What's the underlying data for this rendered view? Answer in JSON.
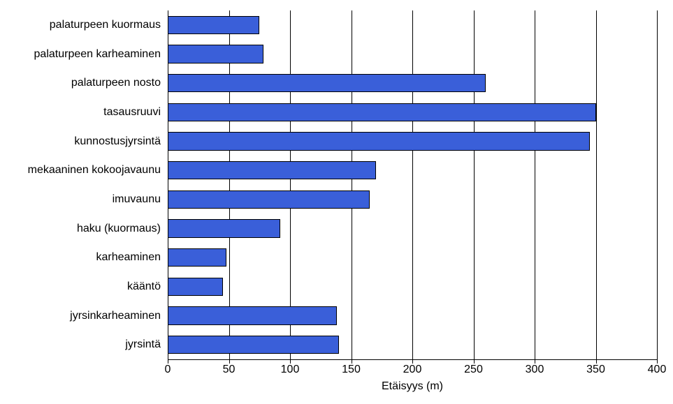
{
  "chart": {
    "type": "bar-horizontal",
    "xlabel": "Etäisyys (m)",
    "xlim": [
      0,
      400
    ],
    "xtick_step": 50,
    "xticks": [
      0,
      50,
      100,
      150,
      200,
      250,
      300,
      350,
      400
    ],
    "background_color": "#ffffff",
    "grid_color": "#000000",
    "bar_color": "#3a5fd9",
    "bar_border": "#000000",
    "text_color": "#000000",
    "label_fontsize": 16,
    "tick_fontsize": 16,
    "bar_relative_height": 0.63,
    "categories": [
      "palaturpeen kuormaus",
      "palaturpeen karheaminen",
      "palaturpeen nosto",
      "tasausruuvi",
      "kunnostusjyrsintä",
      "mekaaninen kokoojavaunu",
      "imuvaunu",
      "haku (kuormaus)",
      "karheaminen",
      "kääntö",
      "jyrsinkarheaminen",
      "jyrsintä"
    ],
    "values": [
      75,
      78,
      260,
      350,
      345,
      170,
      165,
      92,
      48,
      45,
      138,
      140
    ]
  }
}
